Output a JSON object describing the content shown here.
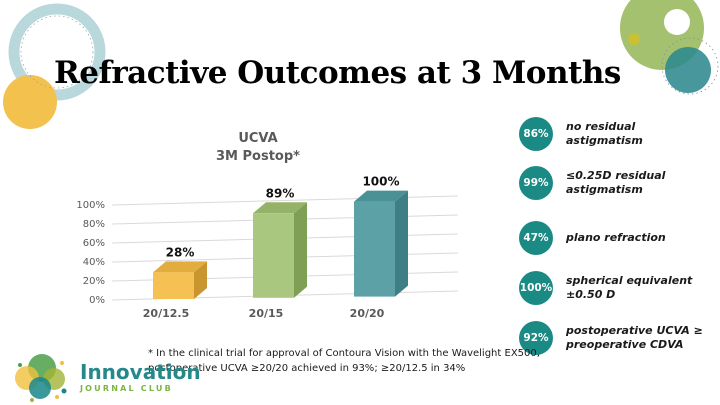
{
  "title": "Refractive Outcomes at 3 Months",
  "chart_data": {
    "type": "bar",
    "style": "3d",
    "title": "UCVA",
    "subtitle": "3M Postop*",
    "categories": [
      "20/12.5",
      "20/15",
      "20/20"
    ],
    "values": [
      28,
      89,
      100
    ],
    "bars": [
      {
        "category": "20/12.5",
        "value": 28,
        "label": "28%",
        "front": "#F5C152",
        "top": "#E2AC3F",
        "side": "#C9952F"
      },
      {
        "category": "20/15",
        "value": 89,
        "label": "89%",
        "front": "#A9C77F",
        "top": "#95B368",
        "side": "#7FA054"
      },
      {
        "category": "20/20",
        "value": 100,
        "label": "100%",
        "front": "#5CA1A6",
        "top": "#4A9196",
        "side": "#3D7F85"
      }
    ],
    "y_axis": {
      "ticks": [
        "0%",
        "20%",
        "40%",
        "60%",
        "80%",
        "100%"
      ],
      "min": 0,
      "max": 100
    },
    "grid": true,
    "legend": "none"
  },
  "badges": [
    {
      "value": "86%",
      "label": "no residual astigmatism"
    },
    {
      "value": "99%",
      "label": "≤0.25D residual astigmatism"
    },
    {
      "value": "47%",
      "label": "plano refraction"
    },
    {
      "value": "100%",
      "label": "spherical equivalent ±0.50 D"
    },
    {
      "value": "92%",
      "label": "postoperative UCVA ≥ preoperative CDVA"
    }
  ],
  "footnote": {
    "line1": "* In the clinical trial for approval of Contoura Vision with the Wavelight EX500,",
    "line2": "postoperative UCVA ≥20/20 achieved in 93%; ≥20/12.5 in 34%"
  },
  "logo": {
    "name": "Innovation",
    "subtitle": "JOURNAL CLUB"
  },
  "colors": {
    "badge_circle": "#1B8A85",
    "chart_text": "#595959",
    "gridline": "#D9D9D9",
    "logo_teal": "#25898B",
    "logo_green": "#7BB542",
    "deco_ring": "#B8D8DB",
    "deco_yellow": "#F2C14E",
    "deco_green_donut": "#A4C16F",
    "deco_teal_circle": "#2E898E"
  }
}
